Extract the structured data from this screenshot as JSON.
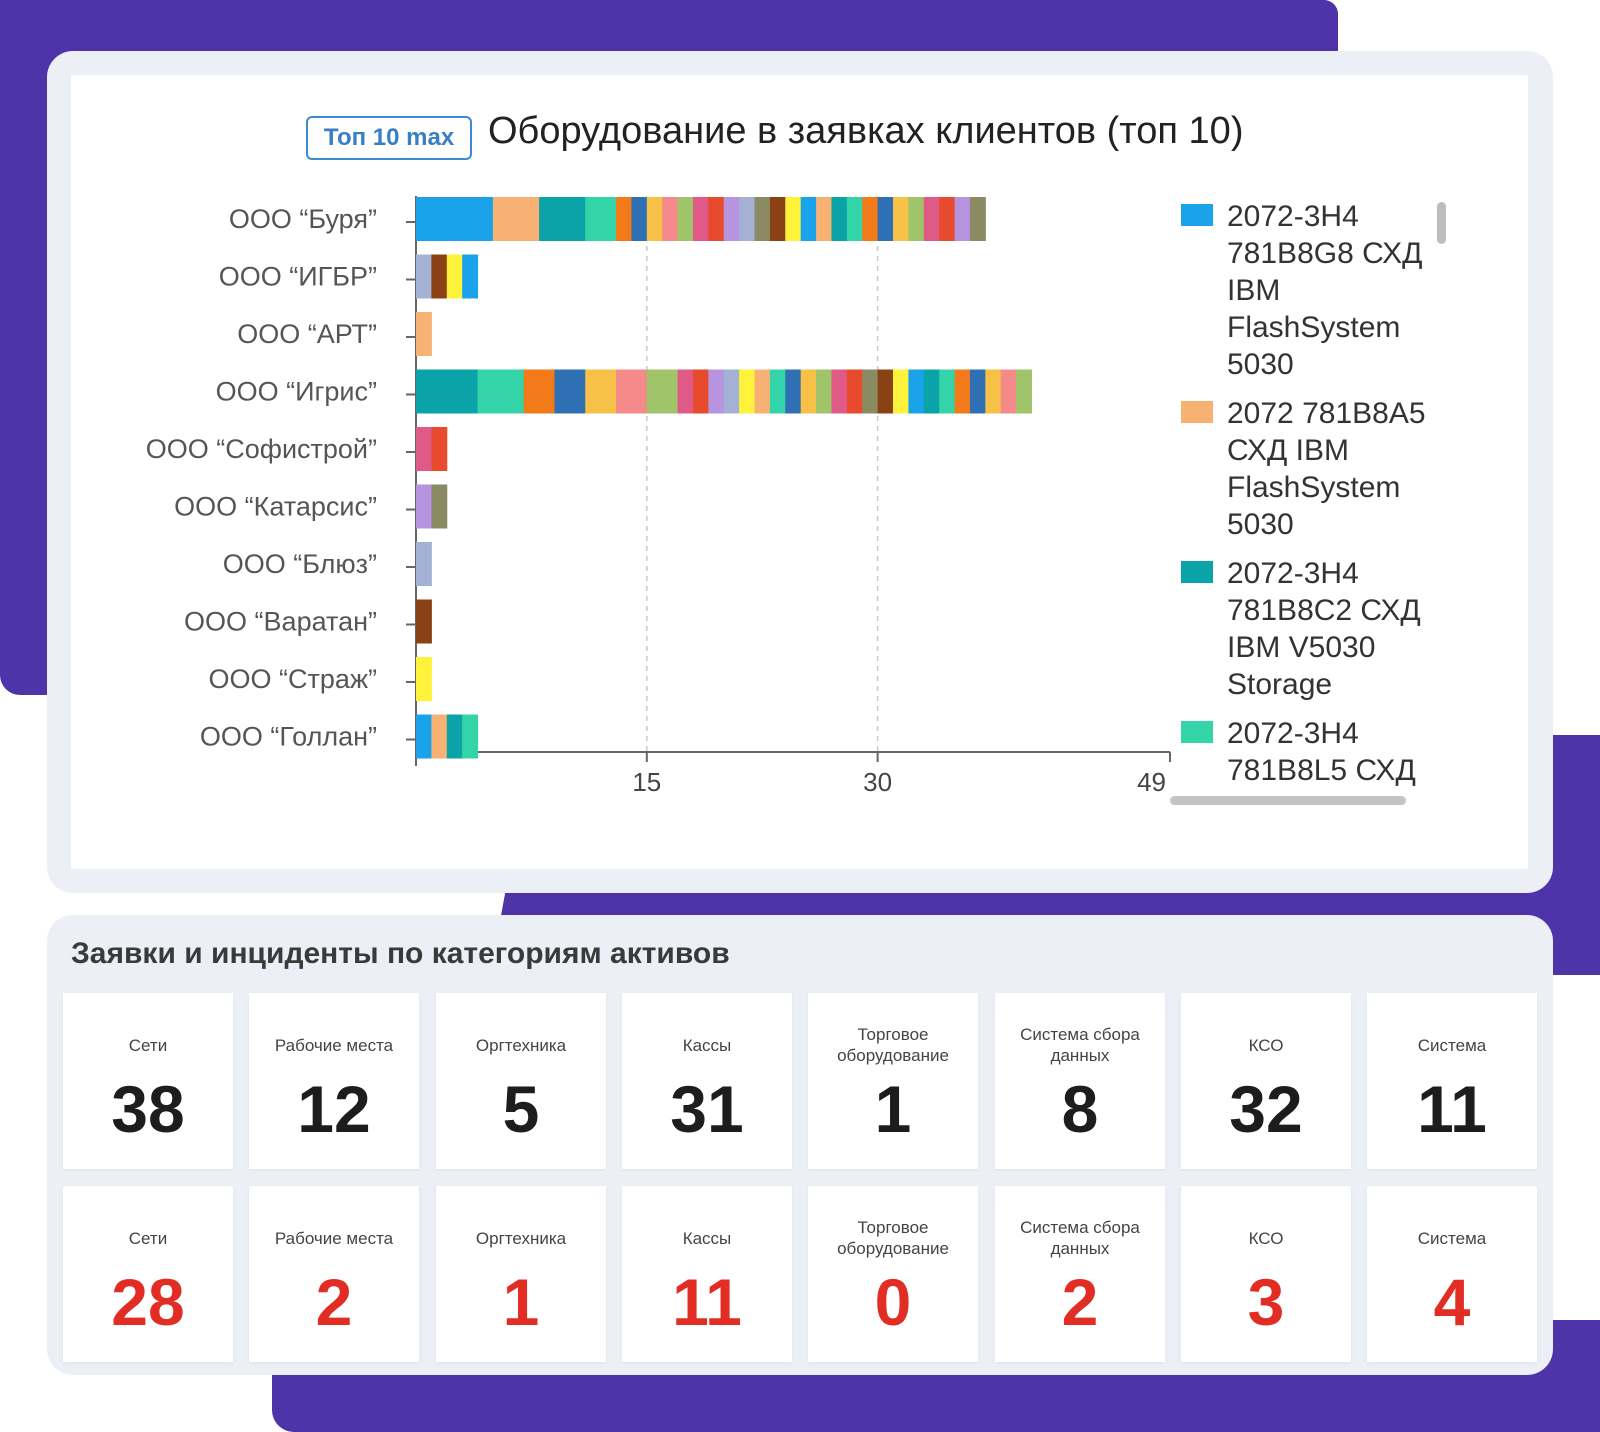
{
  "chart_card": {
    "badge": "Топ 10 max",
    "title": "Оборудование в заявках клиентов (топ 10)"
  },
  "colors": {
    "background_accent": "#4f33a8",
    "badge_blue": "#3c8ad3",
    "value_red": "#e22d24"
  },
  "chart_data": {
    "type": "bar",
    "orientation": "horizontal",
    "stacked": true,
    "title": "Оборудование в заявках клиентов (топ 10)",
    "categories": [
      "ООО “Буря”",
      "ООО “ИГБР”",
      "ООО “АРТ”",
      "ООО “Игрис”",
      "ООО “Софистрой”",
      "ООО “Катарсис”",
      "ООО “Блюз”",
      "ООО “Варатан”",
      "ООО “Страж”",
      "ООО “Голлан”"
    ],
    "xticks": [
      15,
      30,
      49
    ],
    "xlim": [
      0,
      49
    ],
    "grid": "vertical dashed",
    "legend_position": "right",
    "palette": [
      "#1aa3ea",
      "#f7b273",
      "#0aa3a8",
      "#33d4a8",
      "#f27a18",
      "#2f70b5",
      "#f7c047",
      "#f48a8a",
      "#a0c46a",
      "#e05a87",
      "#e84a2e",
      "#b793e0",
      "#a3b2d4",
      "#8a8a63",
      "#8a4114",
      "#fff23b"
    ],
    "legend": [
      {
        "label": "2072-3H4 781B8G8 СХД IBM FlashSystem 5030",
        "color": "#1aa3ea"
      },
      {
        "label": "2072 781B8A5 СХД IBM FlashSystem 5030",
        "color": "#f7b273"
      },
      {
        "label": "2072-3H4 781B8C2 СХД IBM V5030 Storage",
        "color": "#0aa3a8"
      },
      {
        "label": "2072-3H4 781B8L5 СХД",
        "color": "#33d4a8"
      }
    ],
    "rows": [
      {
        "segments": [
          [
            5,
            0
          ],
          [
            3,
            1
          ],
          [
            3,
            2
          ],
          [
            2,
            3
          ],
          [
            1,
            4
          ],
          [
            1,
            5
          ],
          [
            1,
            6
          ],
          [
            1,
            7
          ],
          [
            1,
            8
          ],
          [
            1,
            9
          ],
          [
            1,
            10
          ],
          [
            1,
            11
          ],
          [
            1,
            12
          ],
          [
            1,
            13
          ],
          [
            1,
            14
          ],
          [
            1,
            15
          ],
          [
            1,
            0
          ],
          [
            1,
            1
          ],
          [
            1,
            2
          ],
          [
            1,
            3
          ],
          [
            1,
            4
          ],
          [
            1,
            5
          ],
          [
            1,
            6
          ],
          [
            1,
            8
          ],
          [
            1,
            9
          ],
          [
            1,
            10
          ],
          [
            1,
            11
          ],
          [
            1,
            13
          ]
        ]
      },
      {
        "segments": [
          [
            1,
            12
          ],
          [
            1,
            14
          ],
          [
            1,
            15
          ],
          [
            1,
            0
          ]
        ]
      },
      {
        "segments": [
          [
            1,
            1
          ]
        ]
      },
      {
        "segments": [
          [
            4,
            2
          ],
          [
            3,
            3
          ],
          [
            2,
            4
          ],
          [
            2,
            5
          ],
          [
            2,
            6
          ],
          [
            2,
            7
          ],
          [
            2,
            8
          ],
          [
            1,
            9
          ],
          [
            1,
            10
          ],
          [
            1,
            11
          ],
          [
            1,
            12
          ],
          [
            1,
            15
          ],
          [
            1,
            1
          ],
          [
            1,
            3
          ],
          [
            1,
            5
          ],
          [
            1,
            6
          ],
          [
            1,
            8
          ],
          [
            1,
            9
          ],
          [
            1,
            10
          ],
          [
            1,
            13
          ],
          [
            1,
            14
          ],
          [
            1,
            15
          ],
          [
            1,
            0
          ],
          [
            1,
            2
          ],
          [
            1,
            3
          ],
          [
            1,
            4
          ],
          [
            1,
            5
          ],
          [
            1,
            6
          ],
          [
            1,
            7
          ],
          [
            1,
            8
          ]
        ]
      },
      {
        "segments": [
          [
            1,
            9
          ],
          [
            1,
            10
          ]
        ]
      },
      {
        "segments": [
          [
            1,
            11
          ],
          [
            1,
            13
          ]
        ]
      },
      {
        "segments": [
          [
            1,
            12
          ]
        ]
      },
      {
        "segments": [
          [
            1,
            14
          ]
        ]
      },
      {
        "segments": [
          [
            1,
            15
          ]
        ]
      },
      {
        "segments": [
          [
            1,
            0
          ],
          [
            1,
            1
          ],
          [
            1,
            2
          ],
          [
            1,
            3
          ]
        ]
      }
    ]
  },
  "stats": {
    "title": "Заявки и инциденты по категориям активов",
    "requests": [
      {
        "label": "Сети",
        "value": "38"
      },
      {
        "label": "Рабочие места",
        "value": "12"
      },
      {
        "label": "Оргтехника",
        "value": "5"
      },
      {
        "label": "Кассы",
        "value": "31"
      },
      {
        "label": "Торговое оборудование",
        "value": "1"
      },
      {
        "label": "Система сбора данных",
        "value": "8"
      },
      {
        "label": "КСО",
        "value": "32"
      },
      {
        "label": "Система",
        "value": "11"
      }
    ],
    "incidents": [
      {
        "label": "Сети",
        "value": "28"
      },
      {
        "label": "Рабочие места",
        "value": "2"
      },
      {
        "label": "Оргтехника",
        "value": "1"
      },
      {
        "label": "Кассы",
        "value": "11"
      },
      {
        "label": "Торговое оборудование",
        "value": "0"
      },
      {
        "label": "Система сбора данных",
        "value": "2"
      },
      {
        "label": "КСО",
        "value": "3"
      },
      {
        "label": "Система",
        "value": "4"
      }
    ]
  }
}
